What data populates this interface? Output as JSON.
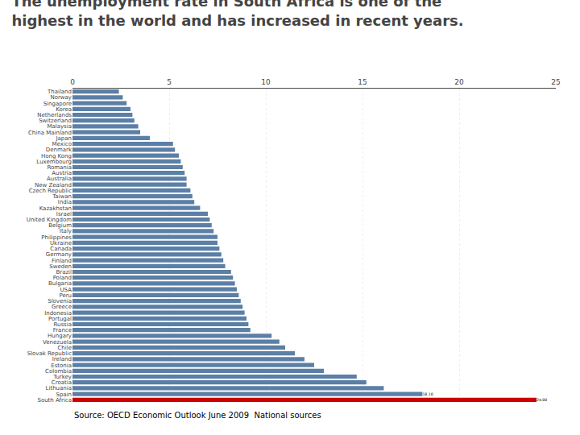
{
  "chart_data": {
    "type": "bar",
    "orientation": "horizontal",
    "title": "The unemployment rate in South Africa is one of the\nhighest in the world and has increased in recent years.",
    "annotations": [
      "Source: OECD Economic Outlook June 2009  National sources"
    ],
    "categories": [
      "Thailand",
      "Norway",
      "Singapore",
      "Korea",
      "Netherlands",
      "Switzerland",
      "Malaysia",
      "China Mainland",
      "Japan",
      "Mexico",
      "Denmark",
      "Hong Kong",
      "Luxembourg",
      "Romania",
      "Austria",
      "Australia",
      "New Zealand",
      "Czech Republic",
      "Taiwan",
      "India",
      "Kazakhstan",
      "Israel",
      "United Kingdom",
      "Belgium",
      "Italy",
      "Philippines",
      "Ukraine",
      "Canada",
      "Germany",
      "Finland",
      "Sweden",
      "Brazil",
      "Poland",
      "Bulgaria",
      "USA",
      "Peru",
      "Slovenia",
      "Greece",
      "Indonesia",
      "Portugal",
      "Russia",
      "France",
      "Hungary",
      "Venezuela",
      "Chile",
      "Slovak Republic",
      "Ireland",
      "Estonia",
      "Colombia",
      "Turkey",
      "Croatia",
      "Lithuania",
      "Spain",
      "South Africa"
    ],
    "values": [
      2.4,
      2.6,
      2.8,
      3.0,
      3.1,
      3.2,
      3.4,
      3.5,
      4.0,
      5.2,
      5.3,
      5.5,
      5.6,
      5.7,
      5.8,
      5.9,
      5.9,
      6.1,
      6.2,
      6.3,
      6.6,
      7.0,
      7.1,
      7.2,
      7.3,
      7.5,
      7.5,
      7.6,
      7.7,
      7.8,
      7.9,
      8.2,
      8.3,
      8.4,
      8.5,
      8.6,
      8.7,
      8.8,
      8.9,
      9.0,
      9.1,
      9.2,
      10.3,
      10.7,
      11.0,
      11.5,
      12.0,
      12.5,
      13.0,
      14.7,
      15.2,
      16.1,
      18.1,
      24.0
    ],
    "value_labels": [
      null,
      null,
      null,
      null,
      null,
      null,
      null,
      null,
      null,
      null,
      null,
      null,
      null,
      null,
      null,
      null,
      null,
      null,
      null,
      null,
      null,
      null,
      null,
      null,
      null,
      null,
      null,
      null,
      null,
      null,
      null,
      null,
      null,
      null,
      null,
      null,
      null,
      null,
      null,
      null,
      null,
      null,
      null,
      null,
      null,
      null,
      null,
      null,
      null,
      null,
      null,
      null,
      "18.10",
      "24.00"
    ],
    "colors": [
      "#5b7fa6",
      "#5b7fa6",
      "#5b7fa6",
      "#5b7fa6",
      "#5b7fa6",
      "#5b7fa6",
      "#5b7fa6",
      "#5b7fa6",
      "#5b7fa6",
      "#5b7fa6",
      "#5b7fa6",
      "#5b7fa6",
      "#5b7fa6",
      "#5b7fa6",
      "#5b7fa6",
      "#5b7fa6",
      "#5b7fa6",
      "#5b7fa6",
      "#5b7fa6",
      "#5b7fa6",
      "#5b7fa6",
      "#5b7fa6",
      "#5b7fa6",
      "#5b7fa6",
      "#5b7fa6",
      "#5b7fa6",
      "#5b7fa6",
      "#5b7fa6",
      "#5b7fa6",
      "#5b7fa6",
      "#5b7fa6",
      "#5b7fa6",
      "#5b7fa6",
      "#5b7fa6",
      "#5b7fa6",
      "#5b7fa6",
      "#5b7fa6",
      "#5b7fa6",
      "#5b7fa6",
      "#5b7fa6",
      "#5b7fa6",
      "#5b7fa6",
      "#5b7fa6",
      "#5b7fa6",
      "#5b7fa6",
      "#5b7fa6",
      "#5b7fa6",
      "#5b7fa6",
      "#5b7fa6",
      "#5b7fa6",
      "#5b7fa6",
      "#5b7fa6",
      "#5b7fa6",
      "#cc0000"
    ],
    "xlim": [
      0,
      25
    ],
    "xticks": [
      0,
      5,
      10,
      15,
      20,
      25
    ],
    "grid": true,
    "data_labels": true
  }
}
